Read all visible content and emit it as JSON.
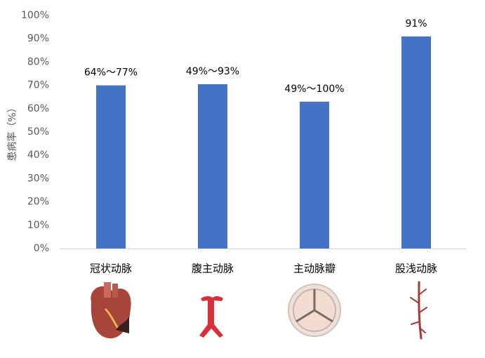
{
  "chart_data": {
    "type": "bar",
    "y_label": "患病率（%）",
    "categories": [
      "冠状动脉",
      "腹主动脉",
      "主动脉瓣",
      "股浅动脉"
    ],
    "values": [
      70,
      70.5,
      63,
      91
    ],
    "annotations": [
      "64%～77%",
      "49%～93%",
      "49%～100%",
      "91%"
    ],
    "color": "#4472c4",
    "ylim": [
      0,
      100
    ],
    "yticks": [
      {
        "value": 0,
        "label": "0%"
      },
      {
        "value": 10,
        "label": "10%"
      },
      {
        "value": 20,
        "label": "20%"
      },
      {
        "value": 30,
        "label": "30%"
      },
      {
        "value": 40,
        "label": "40%"
      },
      {
        "value": 50,
        "label": "50%"
      },
      {
        "value": 60,
        "label": "60%"
      },
      {
        "value": 70,
        "label": "70%"
      },
      {
        "value": 80,
        "label": "80%"
      },
      {
        "value": 90,
        "label": "90%"
      },
      {
        "value": 100,
        "label": "100%"
      }
    ],
    "grid": false
  }
}
